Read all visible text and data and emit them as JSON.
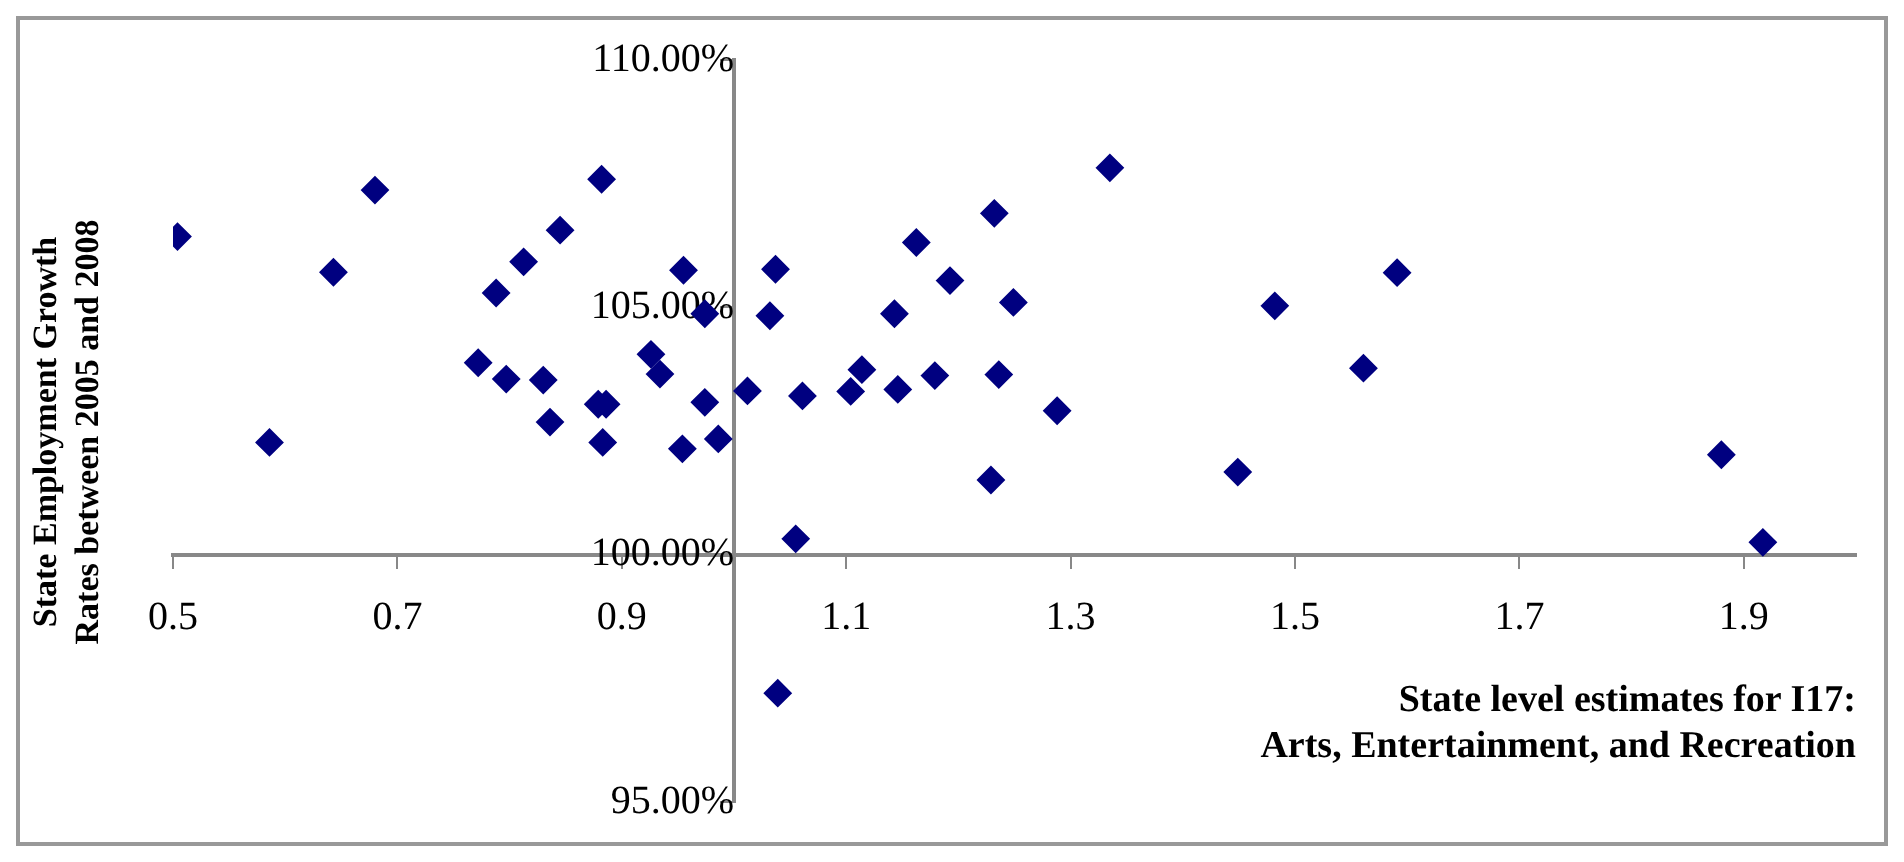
{
  "chart_data": {
    "type": "scatter",
    "xlabel": "State level estimates for I17: Arts, Entertainment, and Recreation",
    "ylabel": "State Employment Growth Rates between 2005 and 2008",
    "xlim": [
      0.5,
      2.0
    ],
    "xticks": [
      0.5,
      0.7,
      0.9,
      {
        "value": 1.0,
        "label": null
      },
      1.1,
      1.3,
      1.5,
      1.7,
      1.9
    ],
    "ylim": [
      95,
      110
    ],
    "yticks": [
      {
        "value": 95,
        "label": "95.00%"
      },
      {
        "value": 100,
        "label": "100.00%"
      },
      {
        "value": 105,
        "label": "105.00%"
      },
      {
        "value": 110,
        "label": "110.00%"
      }
    ],
    "grid": false,
    "legend": false,
    "marker": "diamond",
    "series": [
      {
        "color": "#000080",
        "x": [
          0.504,
          0.586,
          0.643,
          0.68,
          0.772,
          0.788,
          0.797,
          0.8125,
          0.83,
          0.836,
          0.845,
          0.879,
          0.886,
          0.883,
          0.882,
          0.926,
          0.934,
          0.955,
          0.954,
          0.974,
          0.974,
          0.986,
          1.012,
          1.037,
          1.032,
          1.055,
          1.039,
          1.061,
          1.104,
          1.114,
          1.143,
          1.146,
          1.1625,
          1.179,
          1.1925,
          1.232,
          1.236,
          1.229,
          1.249,
          1.288,
          1.335,
          1.449,
          1.482,
          1.561,
          1.591,
          1.88,
          1.917
        ],
        "values": [
          106.43,
          102.27,
          105.71,
          107.37,
          103.88,
          105.29,
          103.55,
          105.92,
          103.53,
          102.68,
          106.56,
          103.04,
          103.04,
          102.27,
          107.59,
          104.05,
          103.65,
          105.75,
          102.14,
          104.87,
          103.08,
          102.34,
          103.31,
          105.77,
          104.83,
          100.32,
          97.2,
          103.21,
          103.3,
          103.74,
          104.87,
          103.34,
          106.31,
          103.62,
          105.54,
          106.9,
          103.64,
          101.51,
          105.1,
          102.91,
          107.82,
          101.67,
          105.03,
          103.77,
          105.7,
          102.02,
          100.25
        ]
      }
    ]
  }
}
